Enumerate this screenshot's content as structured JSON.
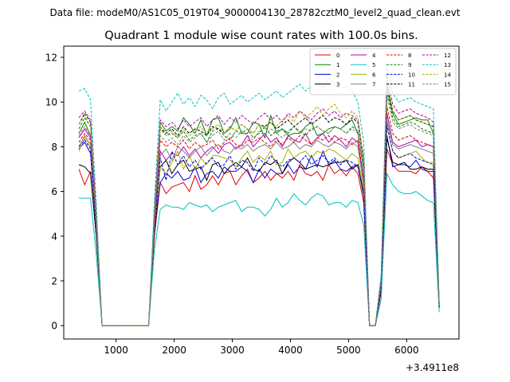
{
  "suptitle": "Data file: modeM0/AS1C05_019T04_9000004130_28782cztM0_level2_quad_clean.evt",
  "chart_data": {
    "type": "line",
    "title": "Quadrant 1 module wise count rates with 100.0s bins.",
    "xlabel": "",
    "ylabel": "",
    "x_offset_label": "+3.4911e8",
    "xlim": [
      100,
      6900
    ],
    "ylim": [
      -0.6,
      12.5
    ],
    "xticks": [
      1000,
      2000,
      3000,
      4000,
      5000,
      6000
    ],
    "xtick_labels": [
      "1000",
      "2000",
      "3000",
      "4000",
      "5000",
      "6000"
    ],
    "yticks": [
      0,
      2,
      4,
      6,
      8,
      10,
      12
    ],
    "ytick_labels": [
      "0",
      "2",
      "4",
      "6",
      "8",
      "10",
      "12"
    ],
    "legend_position": "top-right",
    "x": [
      360,
      460,
      560,
      660,
      760,
      860,
      960,
      1060,
      1160,
      1260,
      1360,
      1460,
      1560,
      1660,
      1760,
      1860,
      1960,
      2060,
      2160,
      2260,
      2360,
      2460,
      2560,
      2660,
      2760,
      2860,
      2960,
      3060,
      3160,
      3260,
      3360,
      3460,
      3560,
      3660,
      3760,
      3860,
      3960,
      4060,
      4160,
      4260,
      4360,
      4460,
      4560,
      4660,
      4760,
      4860,
      4960,
      5060,
      5160,
      5260,
      5360,
      5460,
      5560,
      5660,
      5760,
      5860,
      5960,
      6060,
      6160,
      6260,
      6360,
      6460,
      6560
    ],
    "series": [
      {
        "name": "0",
        "color": "#e00000",
        "dash": false,
        "values": [
          7.0,
          6.3,
          6.9,
          4.0,
          0.0,
          0.0,
          0.0,
          0.0,
          0.0,
          0.0,
          0.0,
          0.0,
          0.0,
          4.0,
          6.4,
          5.9,
          6.2,
          6.3,
          6.4,
          6.0,
          6.7,
          6.1,
          6.3,
          6.7,
          6.3,
          6.8,
          6.9,
          6.3,
          6.7,
          7.0,
          6.4,
          6.6,
          6.9,
          6.5,
          6.8,
          6.6,
          6.9,
          6.5,
          7.2,
          6.8,
          6.7,
          6.9,
          6.5,
          7.2,
          6.8,
          7.0,
          6.7,
          7.1,
          6.8,
          5.5,
          0.0,
          0.0,
          1.5,
          7.9,
          7.2,
          6.9,
          6.9,
          6.9,
          6.8,
          7.1,
          6.9,
          6.6,
          0.8
        ]
      },
      {
        "name": "1",
        "color": "#008000",
        "dash": false,
        "values": [
          8.6,
          9.1,
          8.5,
          4.5,
          0.0,
          0.0,
          0.0,
          0.0,
          0.0,
          0.0,
          0.0,
          0.0,
          0.0,
          5.0,
          9.1,
          8.7,
          8.9,
          8.7,
          9.3,
          9.0,
          8.6,
          9.2,
          8.5,
          9.2,
          9.3,
          8.6,
          8.8,
          9.3,
          8.6,
          8.6,
          9.1,
          9.0,
          8.4,
          9.4,
          8.6,
          8.8,
          8.5,
          8.6,
          8.6,
          8.9,
          9.1,
          8.5,
          8.6,
          8.8,
          8.9,
          8.8,
          9.0,
          9.2,
          8.6,
          7.0,
          0.0,
          0.0,
          2.0,
          10.7,
          9.5,
          9.0,
          9.1,
          9.2,
          9.3,
          9.2,
          9.2,
          8.6,
          0.9
        ]
      },
      {
        "name": "2",
        "color": "#0000e0",
        "dash": false,
        "values": [
          7.9,
          8.2,
          7.7,
          4.3,
          0.0,
          0.0,
          0.0,
          0.0,
          0.0,
          0.0,
          0.0,
          0.0,
          0.0,
          4.3,
          6.4,
          6.8,
          6.6,
          6.9,
          6.5,
          6.6,
          7.1,
          6.4,
          6.8,
          6.9,
          6.6,
          7.1,
          6.9,
          6.9,
          7.1,
          6.9,
          6.4,
          7.0,
          6.6,
          7.0,
          6.8,
          6.8,
          7.2,
          6.8,
          7.1,
          7.0,
          7.6,
          7.1,
          7.8,
          7.2,
          7.4,
          7.0,
          6.9,
          7.1,
          7.2,
          5.8,
          0.0,
          0.0,
          1.6,
          8.5,
          7.1,
          7.2,
          7.2,
          7.1,
          7.4,
          7.0,
          6.9,
          6.9,
          0.8
        ]
      },
      {
        "name": "3",
        "color": "#000000",
        "dash": false,
        "values": [
          7.2,
          7.1,
          6.8,
          4.0,
          0.0,
          0.0,
          0.0,
          0.0,
          0.0,
          0.0,
          0.0,
          0.0,
          0.0,
          4.2,
          7.1,
          7.4,
          6.8,
          7.2,
          7.4,
          6.9,
          7.0,
          7.1,
          6.5,
          7.2,
          7.3,
          6.8,
          7.1,
          7.3,
          7.1,
          7.5,
          7.0,
          6.9,
          7.3,
          7.2,
          7.4,
          6.8,
          7.3,
          7.5,
          7.3,
          7.0,
          7.1,
          7.2,
          7.1,
          7.2,
          7.3,
          7.3,
          7.4,
          7.0,
          7.2,
          5.9,
          0.0,
          0.0,
          1.6,
          8.4,
          7.3,
          7.2,
          7.3,
          7.0,
          7.0,
          7.1,
          7.0,
          7.0,
          0.8
        ]
      },
      {
        "name": "4",
        "color": "#b000b0",
        "dash": false,
        "values": [
          8.4,
          8.8,
          8.4,
          4.4,
          0.0,
          0.0,
          0.0,
          0.0,
          0.0,
          0.0,
          0.0,
          0.0,
          0.0,
          4.6,
          7.8,
          7.4,
          7.7,
          7.6,
          8.0,
          7.6,
          7.9,
          7.5,
          7.8,
          8.0,
          7.7,
          8.1,
          8.2,
          7.9,
          8.1,
          8.5,
          8.0,
          8.3,
          8.6,
          8.2,
          8.4,
          8.0,
          8.5,
          8.3,
          8.2,
          8.6,
          8.1,
          8.4,
          8.6,
          8.2,
          8.5,
          8.3,
          8.0,
          8.4,
          8.2,
          6.5,
          0.0,
          0.0,
          1.8,
          9.5,
          8.2,
          8.0,
          8.1,
          8.2,
          8.3,
          8.0,
          8.1,
          8.0,
          0.9
        ]
      },
      {
        "name": "5",
        "color": "#00c0c0",
        "dash": false,
        "values": [
          5.7,
          5.7,
          5.7,
          3.2,
          0.0,
          0.0,
          0.0,
          0.0,
          0.0,
          0.0,
          0.0,
          0.0,
          0.0,
          3.4,
          5.2,
          5.4,
          5.3,
          5.3,
          5.2,
          5.5,
          5.4,
          5.3,
          5.4,
          5.1,
          5.3,
          5.4,
          5.5,
          5.6,
          5.1,
          5.3,
          5.3,
          5.2,
          4.9,
          5.2,
          5.7,
          5.3,
          5.5,
          5.9,
          5.6,
          5.4,
          5.7,
          5.9,
          5.8,
          5.4,
          5.5,
          5.5,
          5.3,
          5.6,
          5.5,
          4.5,
          0.0,
          0.0,
          1.2,
          6.8,
          6.3,
          6.0,
          5.9,
          5.9,
          6.0,
          5.8,
          5.6,
          5.5,
          0.6
        ]
      },
      {
        "name": "6",
        "color": "#b0b000",
        "dash": false,
        "values": [
          7.8,
          8.4,
          8.0,
          4.3,
          0.0,
          0.0,
          0.0,
          0.0,
          0.0,
          0.0,
          0.0,
          0.0,
          0.0,
          4.4,
          7.1,
          6.8,
          7.3,
          7.8,
          7.0,
          7.6,
          7.0,
          7.5,
          7.2,
          7.6,
          7.6,
          7.5,
          7.4,
          7.1,
          7.5,
          7.8,
          7.3,
          7.6,
          7.4,
          7.8,
          7.2,
          7.3,
          7.9,
          7.5,
          7.7,
          7.8,
          7.5,
          7.8,
          7.7,
          7.9,
          7.8,
          7.6,
          7.4,
          7.7,
          7.5,
          6.1,
          0.0,
          0.0,
          1.7,
          8.9,
          7.8,
          7.5,
          7.6,
          7.7,
          7.8,
          7.5,
          7.3,
          7.3,
          0.8
        ]
      },
      {
        "name": "7",
        "color": "#808080",
        "dash": false,
        "values": [
          8.0,
          8.5,
          8.1,
          4.4,
          0.0,
          0.0,
          0.0,
          0.0,
          0.0,
          0.0,
          0.0,
          0.0,
          0.0,
          4.5,
          7.6,
          7.9,
          7.4,
          8.0,
          7.8,
          7.5,
          7.8,
          8.0,
          7.6,
          7.9,
          8.1,
          7.8,
          7.7,
          8.0,
          7.9,
          8.1,
          7.8,
          8.0,
          8.1,
          7.9,
          8.2,
          7.9,
          8.0,
          8.2,
          7.9,
          8.1,
          8.0,
          8.3,
          8.1,
          8.0,
          8.2,
          8.1,
          7.9,
          8.2,
          8.0,
          6.3,
          0.0,
          0.0,
          1.7,
          9.2,
          8.1,
          7.9,
          8.0,
          8.1,
          8.0,
          7.9,
          7.8,
          7.7,
          0.8
        ]
      },
      {
        "name": "8",
        "color": "#e00000",
        "dash": true,
        "values": [
          8.2,
          8.6,
          8.3,
          4.5,
          0.0,
          0.0,
          0.0,
          0.0,
          0.0,
          0.0,
          0.0,
          0.0,
          0.0,
          4.7,
          8.3,
          8.0,
          8.2,
          8.0,
          8.3,
          7.9,
          8.2,
          8.0,
          8.1,
          8.3,
          7.9,
          8.2,
          8.4,
          8.1,
          8.0,
          8.3,
          8.2,
          8.4,
          8.2,
          8.0,
          8.3,
          8.1,
          8.4,
          8.2,
          8.5,
          8.3,
          8.1,
          8.4,
          8.3,
          8.5,
          8.2,
          8.4,
          8.3,
          8.1,
          8.3,
          6.6,
          0.0,
          0.0,
          1.8,
          9.8,
          8.6,
          8.3,
          8.4,
          8.5,
          8.3,
          8.2,
          8.1,
          8.0,
          0.9
        ]
      },
      {
        "name": "9",
        "color": "#008000",
        "dash": true,
        "values": [
          8.8,
          9.3,
          8.9,
          4.8,
          0.0,
          0.0,
          0.0,
          0.0,
          0.0,
          0.0,
          0.0,
          0.0,
          0.0,
          4.9,
          8.8,
          8.5,
          8.6,
          8.4,
          8.7,
          8.3,
          8.5,
          8.6,
          8.2,
          8.7,
          8.8,
          8.5,
          8.3,
          8.7,
          8.6,
          8.8,
          8.4,
          8.6,
          8.9,
          8.5,
          8.7,
          8.8,
          8.6,
          8.9,
          8.7,
          8.5,
          8.8,
          8.9,
          8.7,
          8.6,
          8.9,
          8.8,
          8.6,
          8.9,
          8.7,
          7.0,
          0.0,
          0.0,
          1.9,
          10.5,
          9.3,
          8.9,
          9.0,
          9.1,
          9.0,
          8.8,
          8.7,
          8.6,
          0.9
        ]
      },
      {
        "name": "10",
        "color": "#0000e0",
        "dash": true,
        "values": [
          8.0,
          8.3,
          7.9,
          4.3,
          0.0,
          0.0,
          0.0,
          0.0,
          0.0,
          0.0,
          0.0,
          0.0,
          0.0,
          4.4,
          7.5,
          6.5,
          7.8,
          7.2,
          7.6,
          7.1,
          7.4,
          7.0,
          7.3,
          7.5,
          7.1,
          7.2,
          7.6,
          7.0,
          7.4,
          7.3,
          6.9,
          7.5,
          7.2,
          7.6,
          7.3,
          7.1,
          7.4,
          7.5,
          7.3,
          7.6,
          7.2,
          7.4,
          7.6,
          7.3,
          7.5,
          7.2,
          7.4,
          7.3,
          7.1,
          5.8,
          0.0,
          0.0,
          1.6,
          9.0,
          7.8,
          7.5,
          7.6,
          7.7,
          7.5,
          7.4,
          7.3,
          7.2,
          0.8
        ]
      },
      {
        "name": "11",
        "color": "#000000",
        "dash": true,
        "values": [
          9.0,
          9.5,
          9.1,
          4.9,
          0.0,
          0.0,
          0.0,
          0.0,
          0.0,
          0.0,
          0.0,
          0.0,
          0.0,
          5.0,
          8.9,
          8.6,
          8.8,
          8.5,
          8.9,
          8.6,
          8.8,
          8.7,
          8.5,
          8.9,
          8.8,
          8.6,
          8.9,
          8.7,
          9.0,
          8.8,
          8.6,
          9.0,
          8.9,
          9.1,
          8.8,
          9.0,
          9.2,
          8.9,
          9.1,
          9.3,
          9.0,
          9.2,
          9.4,
          9.1,
          9.3,
          9.2,
          9.0,
          9.3,
          9.1,
          7.3,
          0.0,
          0.0,
          2.0,
          10.8,
          9.6,
          9.2,
          9.3,
          9.4,
          9.2,
          9.1,
          9.0,
          8.9,
          0.9
        ]
      },
      {
        "name": "12",
        "color": "#b000b0",
        "dash": true,
        "values": [
          9.3,
          9.6,
          9.2,
          5.0,
          0.0,
          0.0,
          0.0,
          0.0,
          0.0,
          0.0,
          0.0,
          0.0,
          0.0,
          5.1,
          9.2,
          8.9,
          9.1,
          8.8,
          9.2,
          8.9,
          9.1,
          9.3,
          8.9,
          9.2,
          9.4,
          9.0,
          9.3,
          9.1,
          9.4,
          9.2,
          9.0,
          9.3,
          9.5,
          9.2,
          9.4,
          9.1,
          9.5,
          9.3,
          9.6,
          9.4,
          9.2,
          9.5,
          9.7,
          9.4,
          9.6,
          9.3,
          9.5,
          9.4,
          9.2,
          7.5,
          0.0,
          0.0,
          2.1,
          11.2,
          9.9,
          9.5,
          9.6,
          9.7,
          9.5,
          9.4,
          9.3,
          9.1,
          0.9
        ]
      },
      {
        "name": "13",
        "color": "#00c0c0",
        "dash": true,
        "values": [
          10.5,
          10.6,
          10.1,
          5.5,
          0.0,
          0.0,
          0.0,
          0.0,
          0.0,
          0.0,
          0.0,
          0.0,
          0.0,
          5.6,
          10.1,
          9.6,
          10.0,
          10.4,
          9.9,
          10.2,
          9.8,
          10.3,
          10.1,
          9.7,
          10.2,
          10.4,
          9.9,
          10.1,
          10.3,
          10.0,
          10.2,
          10.4,
          10.1,
          10.3,
          10.5,
          10.2,
          10.4,
          10.6,
          10.8,
          10.5,
          10.7,
          10.9,
          10.6,
          11.1,
          10.8,
          10.6,
          10.7,
          10.5,
          10.0,
          8.2,
          0.0,
          0.0,
          2.3,
          11.7,
          10.4,
          10.0,
          10.1,
          10.2,
          10.0,
          9.9,
          9.8,
          9.7,
          1.0
        ]
      },
      {
        "name": "14",
        "color": "#b0b000",
        "dash": true,
        "values": [
          9.0,
          9.4,
          8.9,
          4.8,
          0.0,
          0.0,
          0.0,
          0.0,
          0.0,
          0.0,
          0.0,
          0.0,
          0.0,
          4.9,
          8.9,
          8.5,
          8.7,
          8.4,
          8.8,
          8.5,
          8.7,
          8.9,
          8.5,
          8.8,
          9.0,
          8.6,
          8.9,
          8.7,
          9.0,
          8.8,
          8.6,
          9.0,
          8.8,
          9.1,
          8.9,
          9.2,
          9.4,
          9.1,
          9.6,
          9.3,
          9.5,
          9.8,
          9.4,
          9.7,
          9.9,
          9.5,
          9.3,
          9.6,
          9.3,
          7.4,
          0.0,
          0.0,
          2.0,
          10.9,
          9.6,
          9.2,
          9.3,
          9.4,
          9.2,
          9.1,
          9.0,
          8.9,
          0.9
        ]
      },
      {
        "name": "15",
        "color": "#808080",
        "dash": true,
        "values": [
          8.5,
          8.9,
          8.5,
          4.6,
          0.0,
          0.0,
          0.0,
          0.0,
          0.0,
          0.0,
          0.0,
          0.0,
          0.0,
          4.7,
          8.5,
          8.2,
          8.4,
          8.1,
          8.5,
          8.2,
          8.4,
          8.6,
          8.2,
          8.5,
          8.7,
          8.3,
          8.6,
          8.4,
          8.7,
          8.5,
          8.3,
          8.7,
          8.5,
          8.8,
          8.6,
          8.4,
          8.7,
          8.9,
          8.6,
          8.8,
          8.7,
          8.9,
          8.7,
          8.6,
          8.9,
          8.8,
          8.6,
          8.8,
          8.6,
          6.9,
          0.0,
          0.0,
          1.9,
          10.3,
          9.1,
          8.8,
          8.9,
          9.0,
          8.8,
          8.7,
          8.6,
          8.5,
          0.9
        ]
      }
    ]
  }
}
